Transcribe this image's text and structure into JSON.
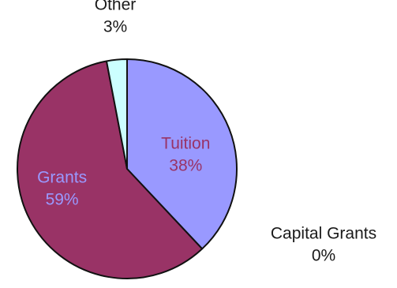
{
  "chart_data": {
    "type": "pie",
    "title": "",
    "start_angle_deg": 0,
    "direction": "clockwise",
    "slices": [
      {
        "label": "Tuition",
        "value": 38,
        "value_label": "38%",
        "color": "#9999ff",
        "label_position": "inside",
        "text_color": "#993366"
      },
      {
        "label": "Capital Grants",
        "value": 0,
        "value_label": "0%",
        "color": "#ffffcc",
        "label_position": "outside",
        "text_color": "#1a1a1a"
      },
      {
        "label": "Grants",
        "value": 59,
        "value_label": "59%",
        "color": "#993366",
        "label_position": "inside",
        "text_color": "#9999ff"
      },
      {
        "label": "Other",
        "value": 3,
        "value_label": "3%",
        "color": "#ccffff",
        "label_position": "outside",
        "text_color": "#1a1a1a"
      }
    ],
    "legend": "none",
    "border_color": "#111111"
  }
}
